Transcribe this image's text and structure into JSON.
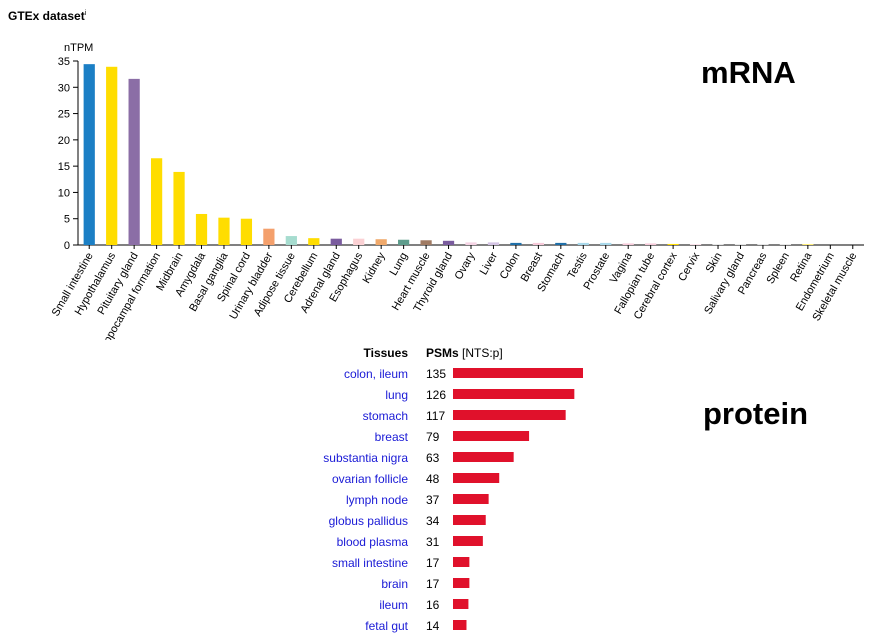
{
  "header": {
    "dataset_title": "GTEx dataset",
    "info_marker": "i"
  },
  "labels": {
    "mrna": "mRNA",
    "protein": "protein"
  },
  "chart_data": [
    {
      "type": "bar",
      "ylabel": "nTPM",
      "ylim": [
        0,
        35
      ],
      "yticks": [
        0,
        5,
        10,
        15,
        20,
        25,
        30,
        35
      ],
      "grid": false,
      "categories": [
        "Small intestine",
        "Hypothalamus",
        "Pituitary gland",
        "Hippocampal formation",
        "Midbrain",
        "Amygdala",
        "Basal ganglia",
        "Spinal cord",
        "Urinary bladder",
        "Adipose tissue",
        "Cerebellum",
        "Adrenal gland",
        "Esophagus",
        "Kidney",
        "Lung",
        "Heart muscle",
        "Thyroid gland",
        "Ovary",
        "Liver",
        "Colon",
        "Breast",
        "Stomach",
        "Testis",
        "Prostate",
        "Vagina",
        "Fallopian tube",
        "Cerebral cortex",
        "Cervix",
        "Skin",
        "Salivary gland",
        "Pancreas",
        "Spleen",
        "Retina",
        "Endometrium",
        "Skeletal muscle"
      ],
      "values": [
        34.4,
        33.9,
        31.6,
        16.5,
        13.9,
        5.9,
        5.2,
        5.0,
        3.1,
        1.7,
        1.3,
        1.2,
        1.2,
        1.1,
        1.0,
        0.9,
        0.8,
        0.5,
        0.5,
        0.4,
        0.4,
        0.4,
        0.4,
        0.4,
        0.3,
        0.3,
        0.2,
        0.1,
        0.1,
        0.1,
        0.1,
        0.1,
        0.1,
        0.0,
        0.0
      ],
      "colors": [
        "#1b7fc5",
        "#ffdd00",
        "#8b6ea6",
        "#ffdd00",
        "#ffdd00",
        "#ffdd00",
        "#ffdd00",
        "#ffdd00",
        "#f4a06c",
        "#a6dccf",
        "#ffdd00",
        "#7a5c9e",
        "#fbd1d4",
        "#f0a96b",
        "#5e9c8c",
        "#a07b63",
        "#7a5c9e",
        "#f5d3e4",
        "#d4c4e4",
        "#1f6fa8",
        "#f7c9d9",
        "#1f6fa8",
        "#a8d8ea",
        "#a8d8ea",
        "#f7c9d9",
        "#f7c9d9",
        "#ffdd00",
        "#f7c9d9",
        "#d0d0d0",
        "#d0d0d0",
        "#d0d0d0",
        "#d0d0d0",
        "#ffdd00",
        "#f7c9d9",
        "#d0d0d0"
      ]
    },
    {
      "type": "bar",
      "orientation": "horizontal",
      "columns": [
        "Tissues",
        "PSMs [NTS:p]"
      ],
      "categories": [
        "colon, ileum",
        "lung",
        "stomach",
        "breast",
        "substantia nigra",
        "ovarian follicle",
        "lymph node",
        "globus pallidus",
        "blood plasma",
        "small intestine",
        "brain",
        "ileum",
        "fetal gut"
      ],
      "values": [
        135,
        126,
        117,
        79,
        63,
        48,
        37,
        34,
        31,
        17,
        17,
        16,
        14
      ],
      "color": "#e0112b"
    }
  ]
}
